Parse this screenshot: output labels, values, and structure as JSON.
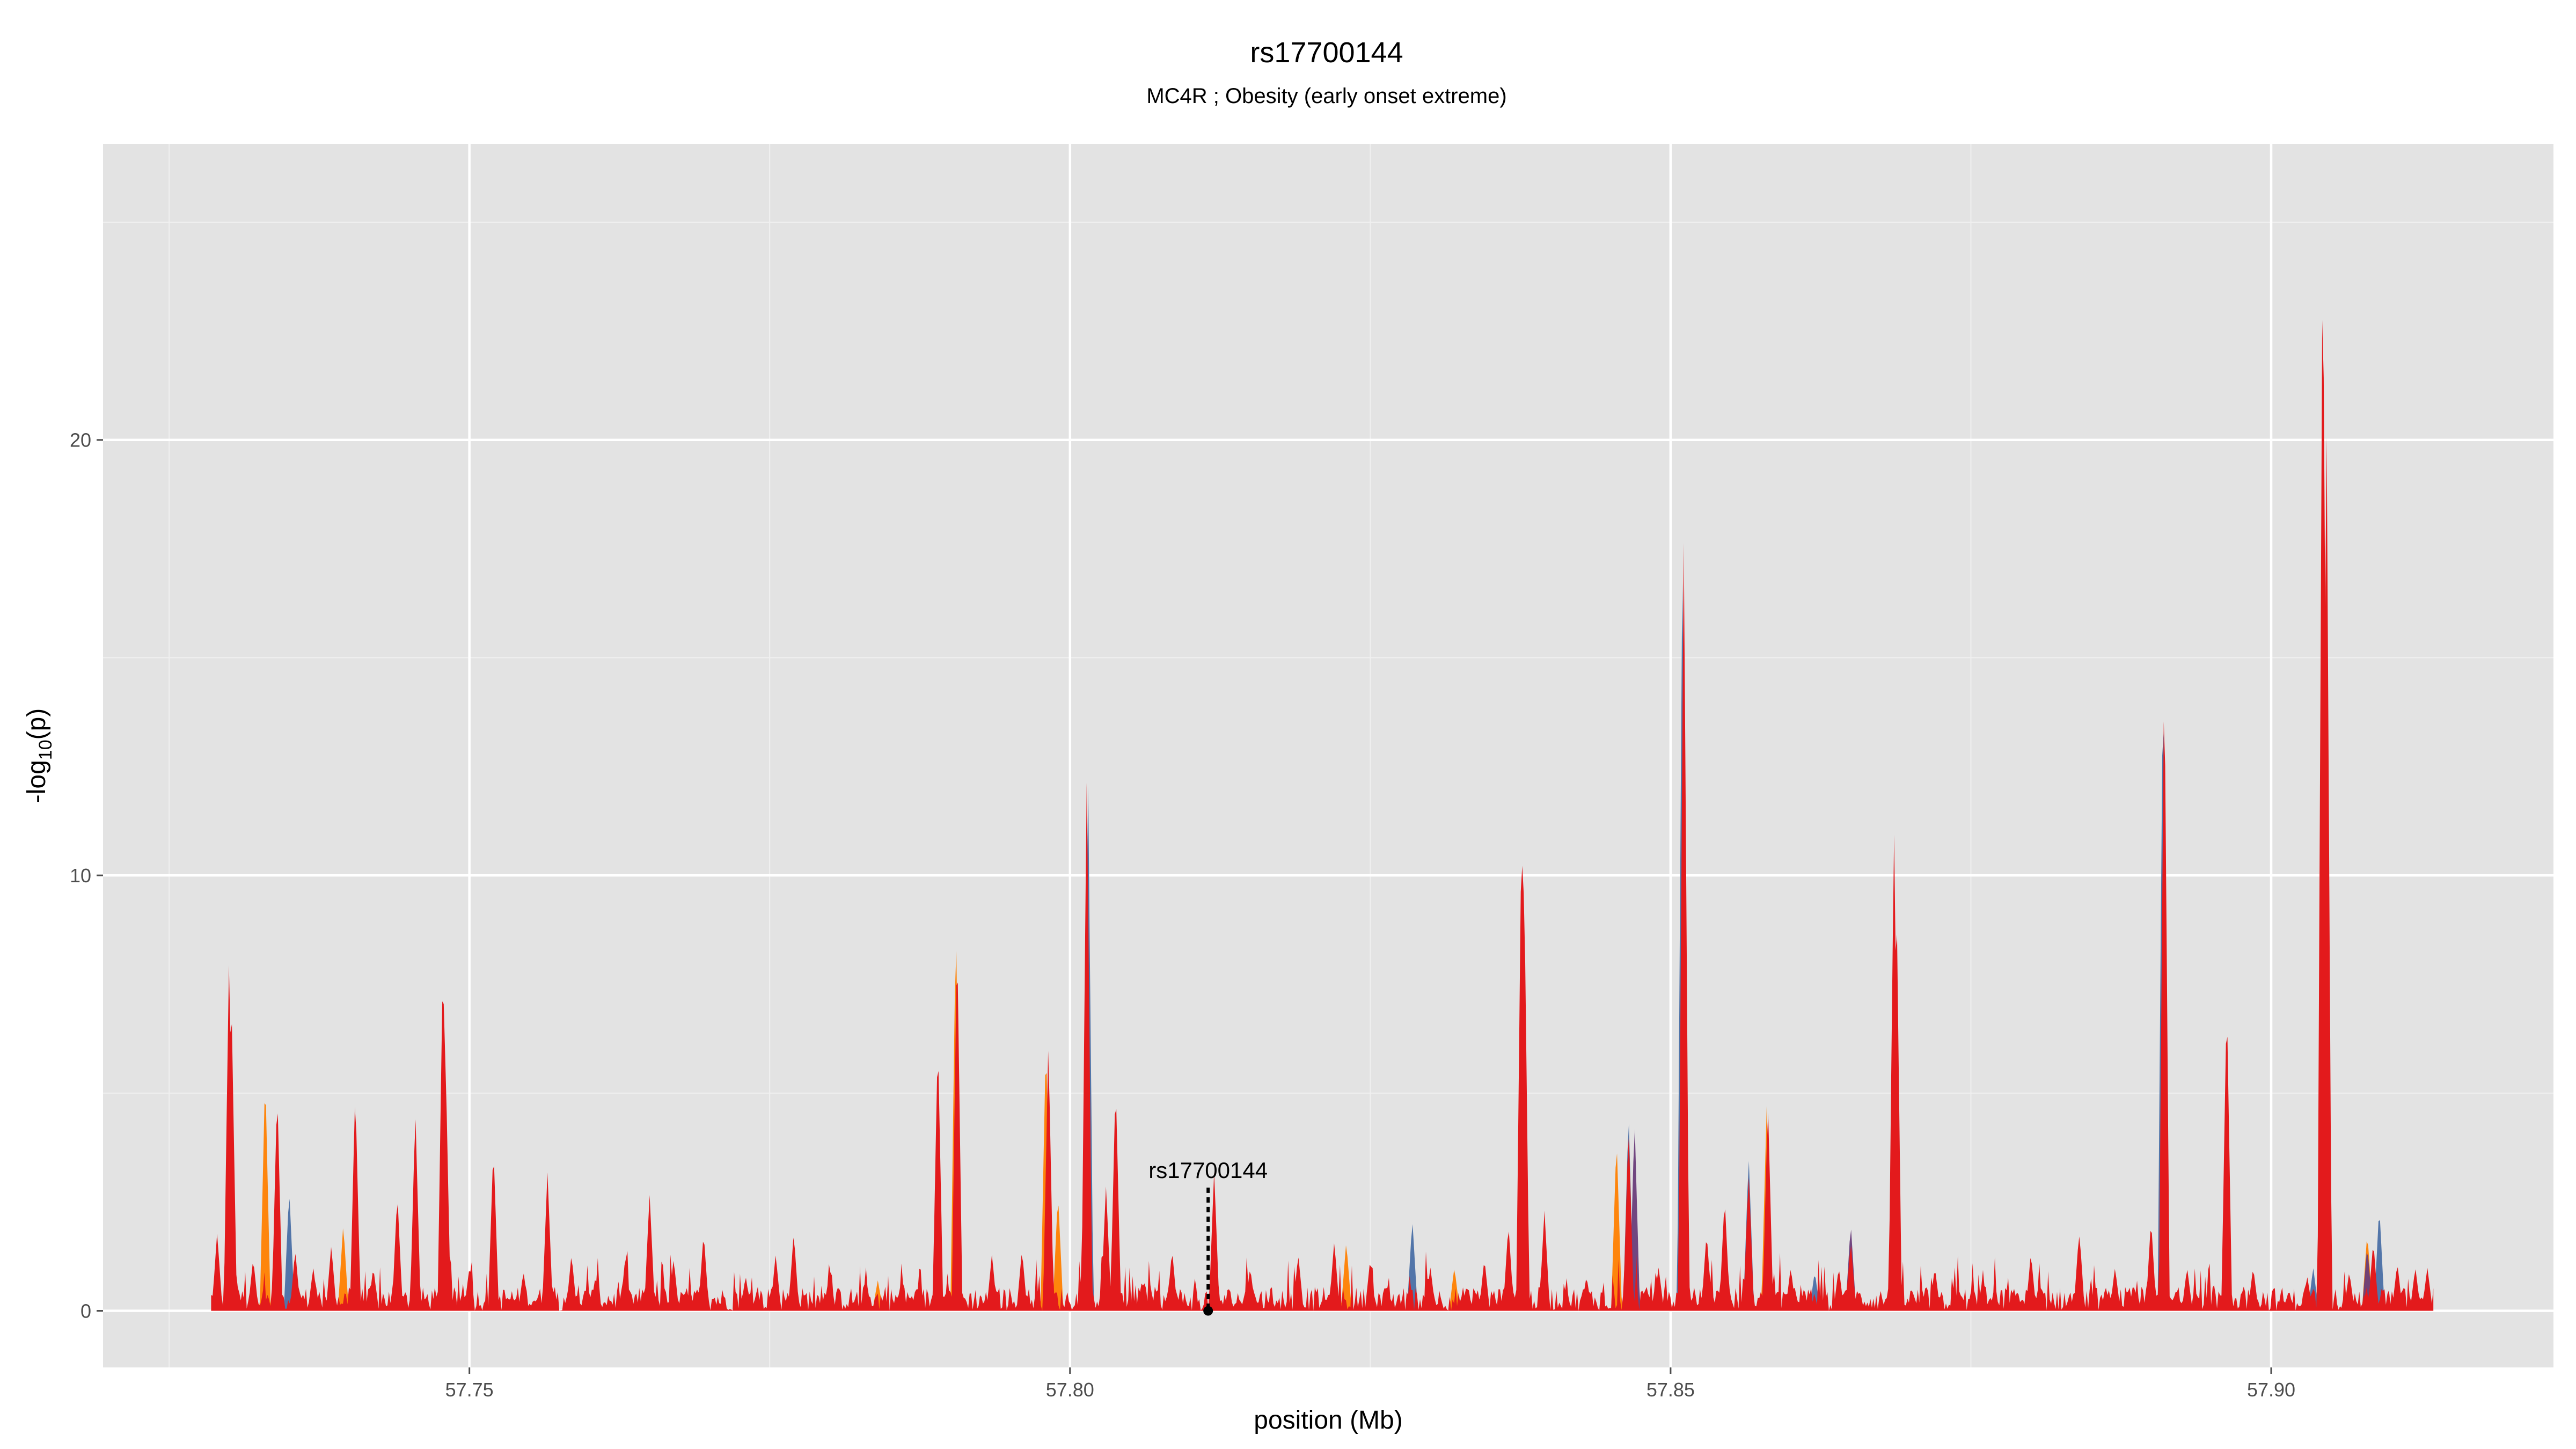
{
  "chart_data": {
    "type": "area",
    "title": "rs17700144",
    "subtitle": "MC4R ; Obesity (early onset extreme)",
    "xlabel": "position (Mb)",
    "ylabel_main": "-log",
    "ylabel_sub": "10",
    "ylabel_tail": "(p)",
    "xlim": [
      57.7195,
      57.9235
    ],
    "ylim": [
      -1.3,
      26.8
    ],
    "x_ticks": [
      57.75,
      57.8,
      57.85,
      57.9
    ],
    "x_tick_labels": [
      "57.75",
      "57.80",
      "57.85",
      "57.90"
    ],
    "y_ticks": [
      0,
      10,
      20
    ],
    "y_tick_labels": [
      "0",
      "10",
      "20"
    ],
    "grid": true,
    "legend": "none",
    "background": "#e3e3e3",
    "range": [
      57.7285,
      57.9135
    ],
    "colors": {
      "red": "#e31a1c",
      "orange": "#ff7f00",
      "blue": "#4a6fa5",
      "purple": "#6a3d7a",
      "gold": "#e8a000"
    },
    "series": [
      {
        "color": "orange",
        "peaks": [
          [
            57.733,
            5.5
          ],
          [
            57.7395,
            2.0
          ],
          [
            57.7905,
            9.0
          ],
          [
            57.798,
            6.3
          ],
          [
            57.799,
            2.7
          ],
          [
            57.784,
            0.7
          ],
          [
            57.8455,
            4.0
          ],
          [
            57.858,
            4.7
          ],
          [
            57.823,
            1.6
          ],
          [
            57.832,
            1.0
          ],
          [
            57.908,
            1.8
          ]
        ]
      },
      {
        "color": "blue",
        "peaks": [
          [
            57.735,
            2.8
          ],
          [
            57.8015,
            12.4
          ],
          [
            57.8285,
            2.1
          ],
          [
            57.8465,
            4.6
          ],
          [
            57.851,
            17.9
          ],
          [
            57.8565,
            3.6
          ],
          [
            57.891,
            15.1
          ],
          [
            57.909,
            2.4
          ],
          [
            57.9035,
            1.0
          ],
          [
            57.862,
            0.9
          ]
        ]
      },
      {
        "color": "purple",
        "peaks": [
          [
            57.847,
            4.4
          ],
          [
            57.865,
            2.0
          ],
          [
            57.908,
            1.5
          ]
        ]
      },
      {
        "color": "red",
        "peaks": [
          [
            57.729,
            1.8
          ],
          [
            57.73,
            8.3
          ],
          [
            57.7302,
            7.0
          ],
          [
            57.732,
            1.2
          ],
          [
            57.734,
            5.1
          ],
          [
            57.7355,
            1.4
          ],
          [
            57.737,
            1.0
          ],
          [
            57.7385,
            1.5
          ],
          [
            57.7405,
            5.1
          ],
          [
            57.742,
            1.0
          ],
          [
            57.744,
            2.7
          ],
          [
            57.7455,
            4.6
          ],
          [
            57.7478,
            8.2
          ],
          [
            57.748,
            6.0
          ],
          [
            57.75,
            1.0
          ],
          [
            57.752,
            3.8
          ],
          [
            57.7545,
            0.9
          ],
          [
            57.7565,
            3.2
          ],
          [
            57.7585,
            1.3
          ],
          [
            57.7605,
            0.8
          ],
          [
            57.763,
            1.3
          ],
          [
            57.765,
            2.7
          ],
          [
            57.767,
            1.2
          ],
          [
            57.7695,
            1.8
          ],
          [
            57.773,
            0.8
          ],
          [
            57.7755,
            1.3
          ],
          [
            57.777,
            1.8
          ],
          [
            57.78,
            1.0
          ],
          [
            57.783,
            0.8
          ],
          [
            57.786,
            0.8
          ],
          [
            57.789,
            6.3
          ],
          [
            57.7906,
            8.7
          ],
          [
            57.7935,
            1.3
          ],
          [
            57.796,
            1.4
          ],
          [
            57.7982,
            6.2
          ],
          [
            57.8014,
            12.4
          ],
          [
            57.803,
            2.9
          ],
          [
            57.8038,
            5.3
          ],
          [
            57.806,
            0.7
          ],
          [
            57.8085,
            1.4
          ],
          [
            57.812,
            3.2
          ],
          [
            57.815,
            1.0
          ],
          [
            57.819,
            1.3
          ],
          [
            57.822,
            1.6
          ],
          [
            57.825,
            1.2
          ],
          [
            57.83,
            1.0
          ],
          [
            57.8345,
            1.2
          ],
          [
            57.8365,
            2.0
          ],
          [
            57.8376,
            11.5
          ],
          [
            57.8378,
            10.2
          ],
          [
            57.8395,
            2.3
          ],
          [
            57.843,
            0.8
          ],
          [
            57.8465,
            4.3
          ],
          [
            57.849,
            1.0
          ],
          [
            57.8511,
            17.9
          ],
          [
            57.853,
            1.8
          ],
          [
            57.8545,
            2.6
          ],
          [
            57.8565,
            3.2
          ],
          [
            57.8581,
            4.8
          ],
          [
            57.86,
            1.0
          ],
          [
            57.864,
            1.0
          ],
          [
            57.865,
            1.6
          ],
          [
            57.8686,
            11.1
          ],
          [
            57.8688,
            9.8
          ],
          [
            57.872,
            1.0
          ],
          [
            57.876,
            0.8
          ],
          [
            57.88,
            1.3
          ],
          [
            57.884,
            1.8
          ],
          [
            57.887,
            1.0
          ],
          [
            57.89,
            2.1
          ],
          [
            57.8911,
            15.1
          ],
          [
            57.893,
            1.0
          ],
          [
            57.8963,
            7.2
          ],
          [
            57.8985,
            1.0
          ],
          [
            57.903,
            0.8
          ],
          [
            57.9043,
            25.6
          ],
          [
            57.9046,
            21.0
          ],
          [
            57.9065,
            0.9
          ],
          [
            57.9085,
            1.6
          ],
          [
            57.9105,
            1.1
          ],
          [
            57.912,
            1.0
          ],
          [
            57.913,
            1.0
          ]
        ]
      }
    ],
    "annotation": {
      "label": "rs17700144",
      "x": 57.8115,
      "y_top": 3.2,
      "y_point": 0
    }
  }
}
